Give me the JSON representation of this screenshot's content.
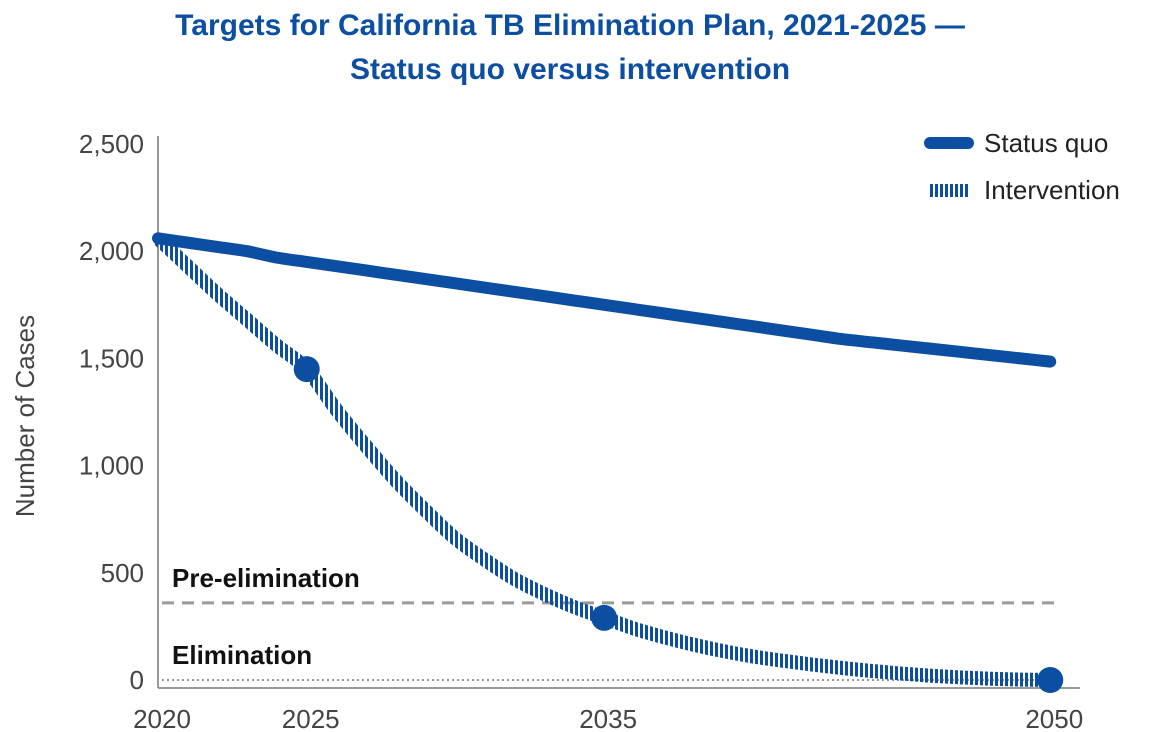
{
  "title_line1": "Targets for California TB Elimination Plan, 2021-2025 —",
  "title_line2": "Status quo versus intervention",
  "colors": {
    "series": "#0b4ea2",
    "reference": "#999999",
    "axis": "#999999",
    "text": "#444444"
  },
  "chart_data": {
    "type": "line",
    "title": "Targets for California TB Elimination Plan, 2021-2025 — Status quo versus intervention",
    "xlabel": "",
    "ylabel": "Number of Cases",
    "xlim": [
      2020,
      2051
    ],
    "ylim": [
      0,
      2500
    ],
    "x_ticks": [
      "2020",
      "2025",
      "2035",
      "2050"
    ],
    "x_tick_values": [
      2020,
      2025,
      2035,
      2050
    ],
    "y_ticks": [
      "0",
      "500",
      "1,000",
      "1,500",
      "2,000",
      "2,500"
    ],
    "y_tick_values": [
      0,
      500,
      1000,
      1500,
      2000,
      2500
    ],
    "grid": false,
    "legend_position": "top-right",
    "series": [
      {
        "name": "Status quo",
        "style": "solid",
        "x": [
          2020,
          2021,
          2022,
          2023,
          2024,
          2025,
          2026,
          2027,
          2028,
          2029,
          2030,
          2031,
          2032,
          2033,
          2034,
          2035,
          2036,
          2037,
          2038,
          2039,
          2040,
          2041,
          2042,
          2043,
          2044,
          2045,
          2046,
          2047,
          2048,
          2049,
          2050
        ],
        "values": [
          2060,
          2040,
          2020,
          2000,
          1970,
          1950,
          1930,
          1910,
          1890,
          1870,
          1850,
          1830,
          1810,
          1790,
          1770,
          1750,
          1730,
          1710,
          1690,
          1670,
          1650,
          1630,
          1610,
          1590,
          1575,
          1560,
          1545,
          1530,
          1515,
          1500,
          1485
        ]
      },
      {
        "name": "Intervention",
        "style": "hatched",
        "x": [
          2020,
          2021,
          2022,
          2023,
          2024,
          2025,
          2026,
          2027,
          2028,
          2029,
          2030,
          2031,
          2032,
          2033,
          2034,
          2035,
          2036,
          2037,
          2038,
          2039,
          2040,
          2041,
          2042,
          2043,
          2044,
          2045,
          2046,
          2047,
          2048,
          2049,
          2050
        ],
        "values": [
          2060,
          1930,
          1800,
          1680,
          1560,
          1450,
          1260,
          1090,
          930,
          790,
          660,
          560,
          470,
          400,
          340,
          290,
          240,
          200,
          165,
          135,
          110,
          90,
          72,
          56,
          42,
          30,
          20,
          12,
          6,
          2,
          0
        ],
        "markers": [
          {
            "x": 2025,
            "y": 1450
          },
          {
            "x": 2035,
            "y": 290
          },
          {
            "x": 2050,
            "y": 0
          }
        ]
      }
    ],
    "reference_lines": [
      {
        "label": "Pre-elimination",
        "y": 360,
        "style": "dashed"
      },
      {
        "label": "Elimination",
        "y": 0,
        "style": "dotted"
      }
    ]
  }
}
